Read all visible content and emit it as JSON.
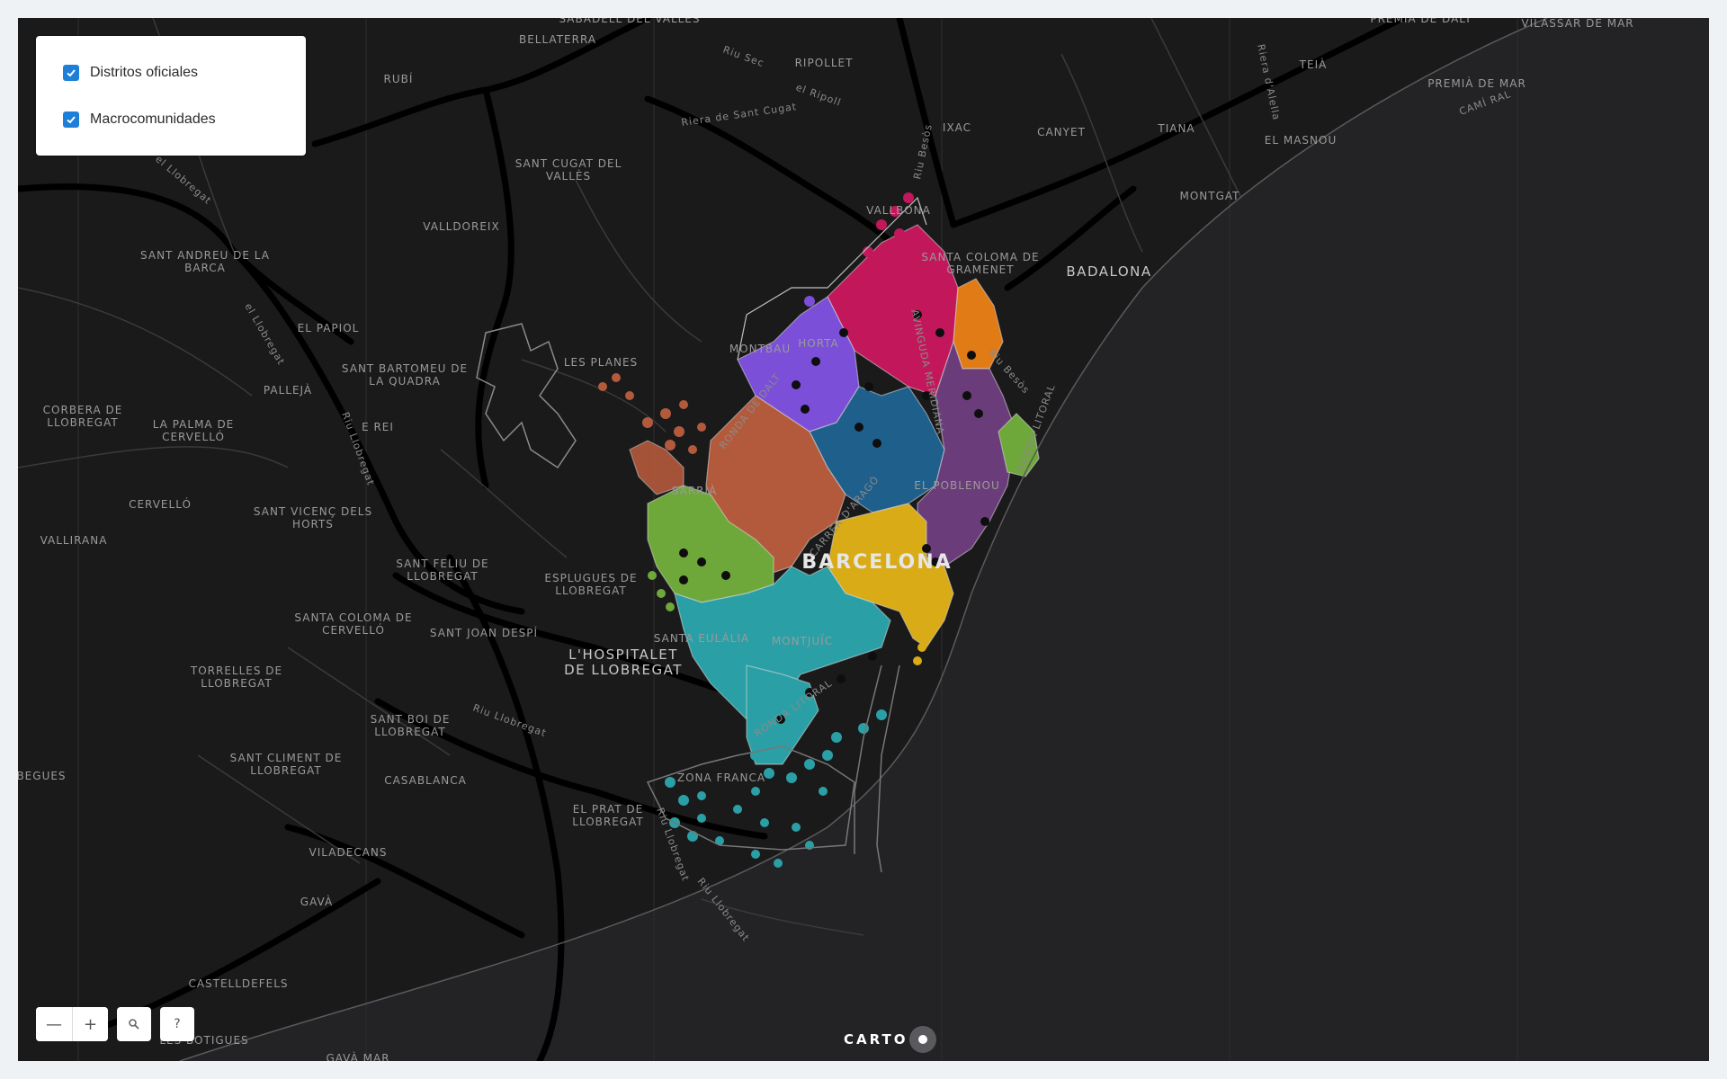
{
  "layers_panel": {
    "items": [
      {
        "label": "Distritos oficiales",
        "checked": true
      },
      {
        "label": "Macrocomunidades",
        "checked": true
      }
    ]
  },
  "controls": {
    "zoom_out_symbol": "—",
    "zoom_in_symbol": "+",
    "search_icon": "magnifier-icon",
    "help_symbol": "?"
  },
  "attribution": {
    "brand": "CARTO"
  },
  "map": {
    "background_color": "#1a1a1b",
    "sea_color": "#232325",
    "labels": {
      "bellaterra": "BELLATERRA",
      "rubi": "RUBÍ",
      "ripollet": "RIPOLLET",
      "ixac": "IXAC",
      "canyet": "CANYET",
      "tiana": "TIANA",
      "teia": "TEIÀ",
      "premia_dalt": "PREMIÀ DE DALT",
      "vilassar": "VILASSAR DE MAR",
      "premia_mar": "PREMIÀ DE MAR",
      "masnou": "EL MASNOU",
      "montgat": "MONTGAT",
      "badalona": "BADALONA",
      "sant_cugat_1": "SANT CUGAT DEL",
      "sant_cugat_2": "VALLÈS",
      "valldoreix": "VALLDOREIX",
      "sant_andreu_barca_1": "SANT ANDREU DE LA",
      "sant_andreu_barca_2": "BARCA",
      "el_papiol": "EL PAPIOL",
      "sant_bartomeu_1": "SANT BARTOMEU DE",
      "sant_bartomeu_2": "LA QUADRA",
      "les_planes": "LES PLANES",
      "palleja": "PALLEJÀ",
      "corbera_1": "CORBERA DE",
      "corbera_2": "LLOBREGAT",
      "la_palma_1": "LA PALMA DE",
      "la_palma_2": "CERVELLÓ",
      "rei": "E REI",
      "vallbona": "VALLBONA",
      "santa_coloma_gramenet_1": "SANTA COLOMA DE",
      "santa_coloma_gramenet_2": "GRAMENET",
      "montbau": "MONTBAU",
      "horta": "HORTA",
      "sarria": "SARRIÀ",
      "el_poblenou": "EL POBLENOU",
      "barcelona": "BARCELONA",
      "cervello": "CERVELLÓ",
      "vallirana": "VALLIRANA",
      "sant_vicenc_1": "SANT VICENÇ DELS",
      "sant_vicenc_2": "HORTS",
      "sant_feliu_1": "SANT FELIU DE",
      "sant_feliu_2": "LLOBREGAT",
      "esplugues_1": "ESPLUGUES DE",
      "esplugues_2": "LLOBREGAT",
      "santa_coloma_cervello_1": "SANTA COLOMA DE",
      "santa_coloma_cervello_2": "CERVELLÓ",
      "sant_joan_despi": "SANT JOAN DESPÍ",
      "santa_eulalia": "SANTA EULÀLIA",
      "montjuic": "MONTJUÏC",
      "hospitalet_1": "L'HOSPITALET",
      "hospitalet_2": "DE LLOBREGAT",
      "torrelles_1": "TORRELLES DE",
      "torrelles_2": "LLOBREGAT",
      "sant_boi_1": "SANT BOI DE",
      "sant_boi_2": "LLOBREGAT",
      "sant_climent_1": "SANT CLIMENT DE",
      "sant_climent_2": "LLOBREGAT",
      "casablanca": "CASABLANCA",
      "zona_franca": "ZONA FRANCA",
      "el_prat_1": "EL PRAT DE",
      "el_prat_2": "LLOBREGAT",
      "begues": "BEGUES",
      "viladecans": "VILADECANS",
      "gava": "GAVÀ",
      "castelldefels": "CASTELLDEFELS",
      "les_botigues": "LES BOTIGUES",
      "gava_mar": "GAVÀ MAR",
      "sabadell_valles": "SABADELL DEL VALLÈS"
    },
    "road_labels": {
      "ronda_dalt": "RONDA DE DALT",
      "carrer_arago": "CARRER D'ARAGÓ",
      "avinguda_meridiana": "AVINGUDA MERIDIANA",
      "ronda_litoral": "RONDA LITORAL",
      "ronda_litoral_2": "RONDA LITORAL",
      "riu_besos": "Riu Besòs",
      "riu_besos_2": "Riu Besòs",
      "riu_llobregat": "Riu Llobregat",
      "riu_llobregat_2": "Riu Llobregat",
      "riu_llobregat_3": "Riu Llobregat",
      "riu_llobregat_4": "Riu Llobregat",
      "riera_sant_cugat": "Riera de Sant Cugat",
      "riu_sec": "Riu Sec",
      "el_llobregat": "el Llobregat",
      "riera_alella": "Riera d'Alella",
      "cami_ral": "CAMÍ RAL",
      "el_ripoll": "el Ripoll"
    },
    "district_colors": [
      "#c2185b",
      "#7b4fd8",
      "#e07b16",
      "#1f5f8b",
      "#b45a3c",
      "#6a3d7a",
      "#6fa83a",
      "#d9ab16",
      "#2aa0a6"
    ]
  }
}
